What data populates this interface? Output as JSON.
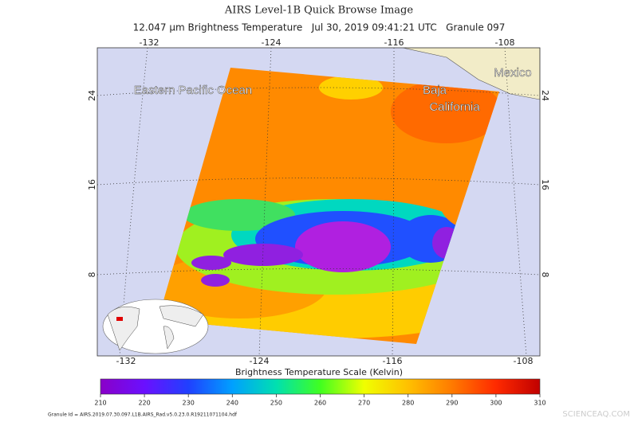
{
  "header": {
    "title": "AIRS Level-1B Quick Browse Image",
    "subtitle": "12.047 μm Brightness Temperature   Jul 30, 2019 09:41:21 UTC   Granule 097"
  },
  "map": {
    "lon_labels_top": [
      -132,
      -124,
      -116,
      -108
    ],
    "lon_labels_bottom": [
      -132,
      -124,
      -116,
      -108
    ],
    "lat_labels": [
      24,
      16,
      8
    ],
    "places": [
      "Eastern Pacific Ocean",
      "Baja",
      "California",
      "Mexico"
    ]
  },
  "colorbar": {
    "title": "Brightness Temperature Scale (Kelvin)",
    "range": [
      210,
      310
    ],
    "ticks": [
      210,
      220,
      230,
      240,
      250,
      260,
      270,
      280,
      290,
      300,
      310
    ]
  },
  "footer": {
    "granule_id": "Granule Id = AIRS.2019.07.30.097.L1B.AIRS_Rad.v5.0.23.0.R19211071104.hdf",
    "watermark": "SCIENCEAQ.COM"
  }
}
